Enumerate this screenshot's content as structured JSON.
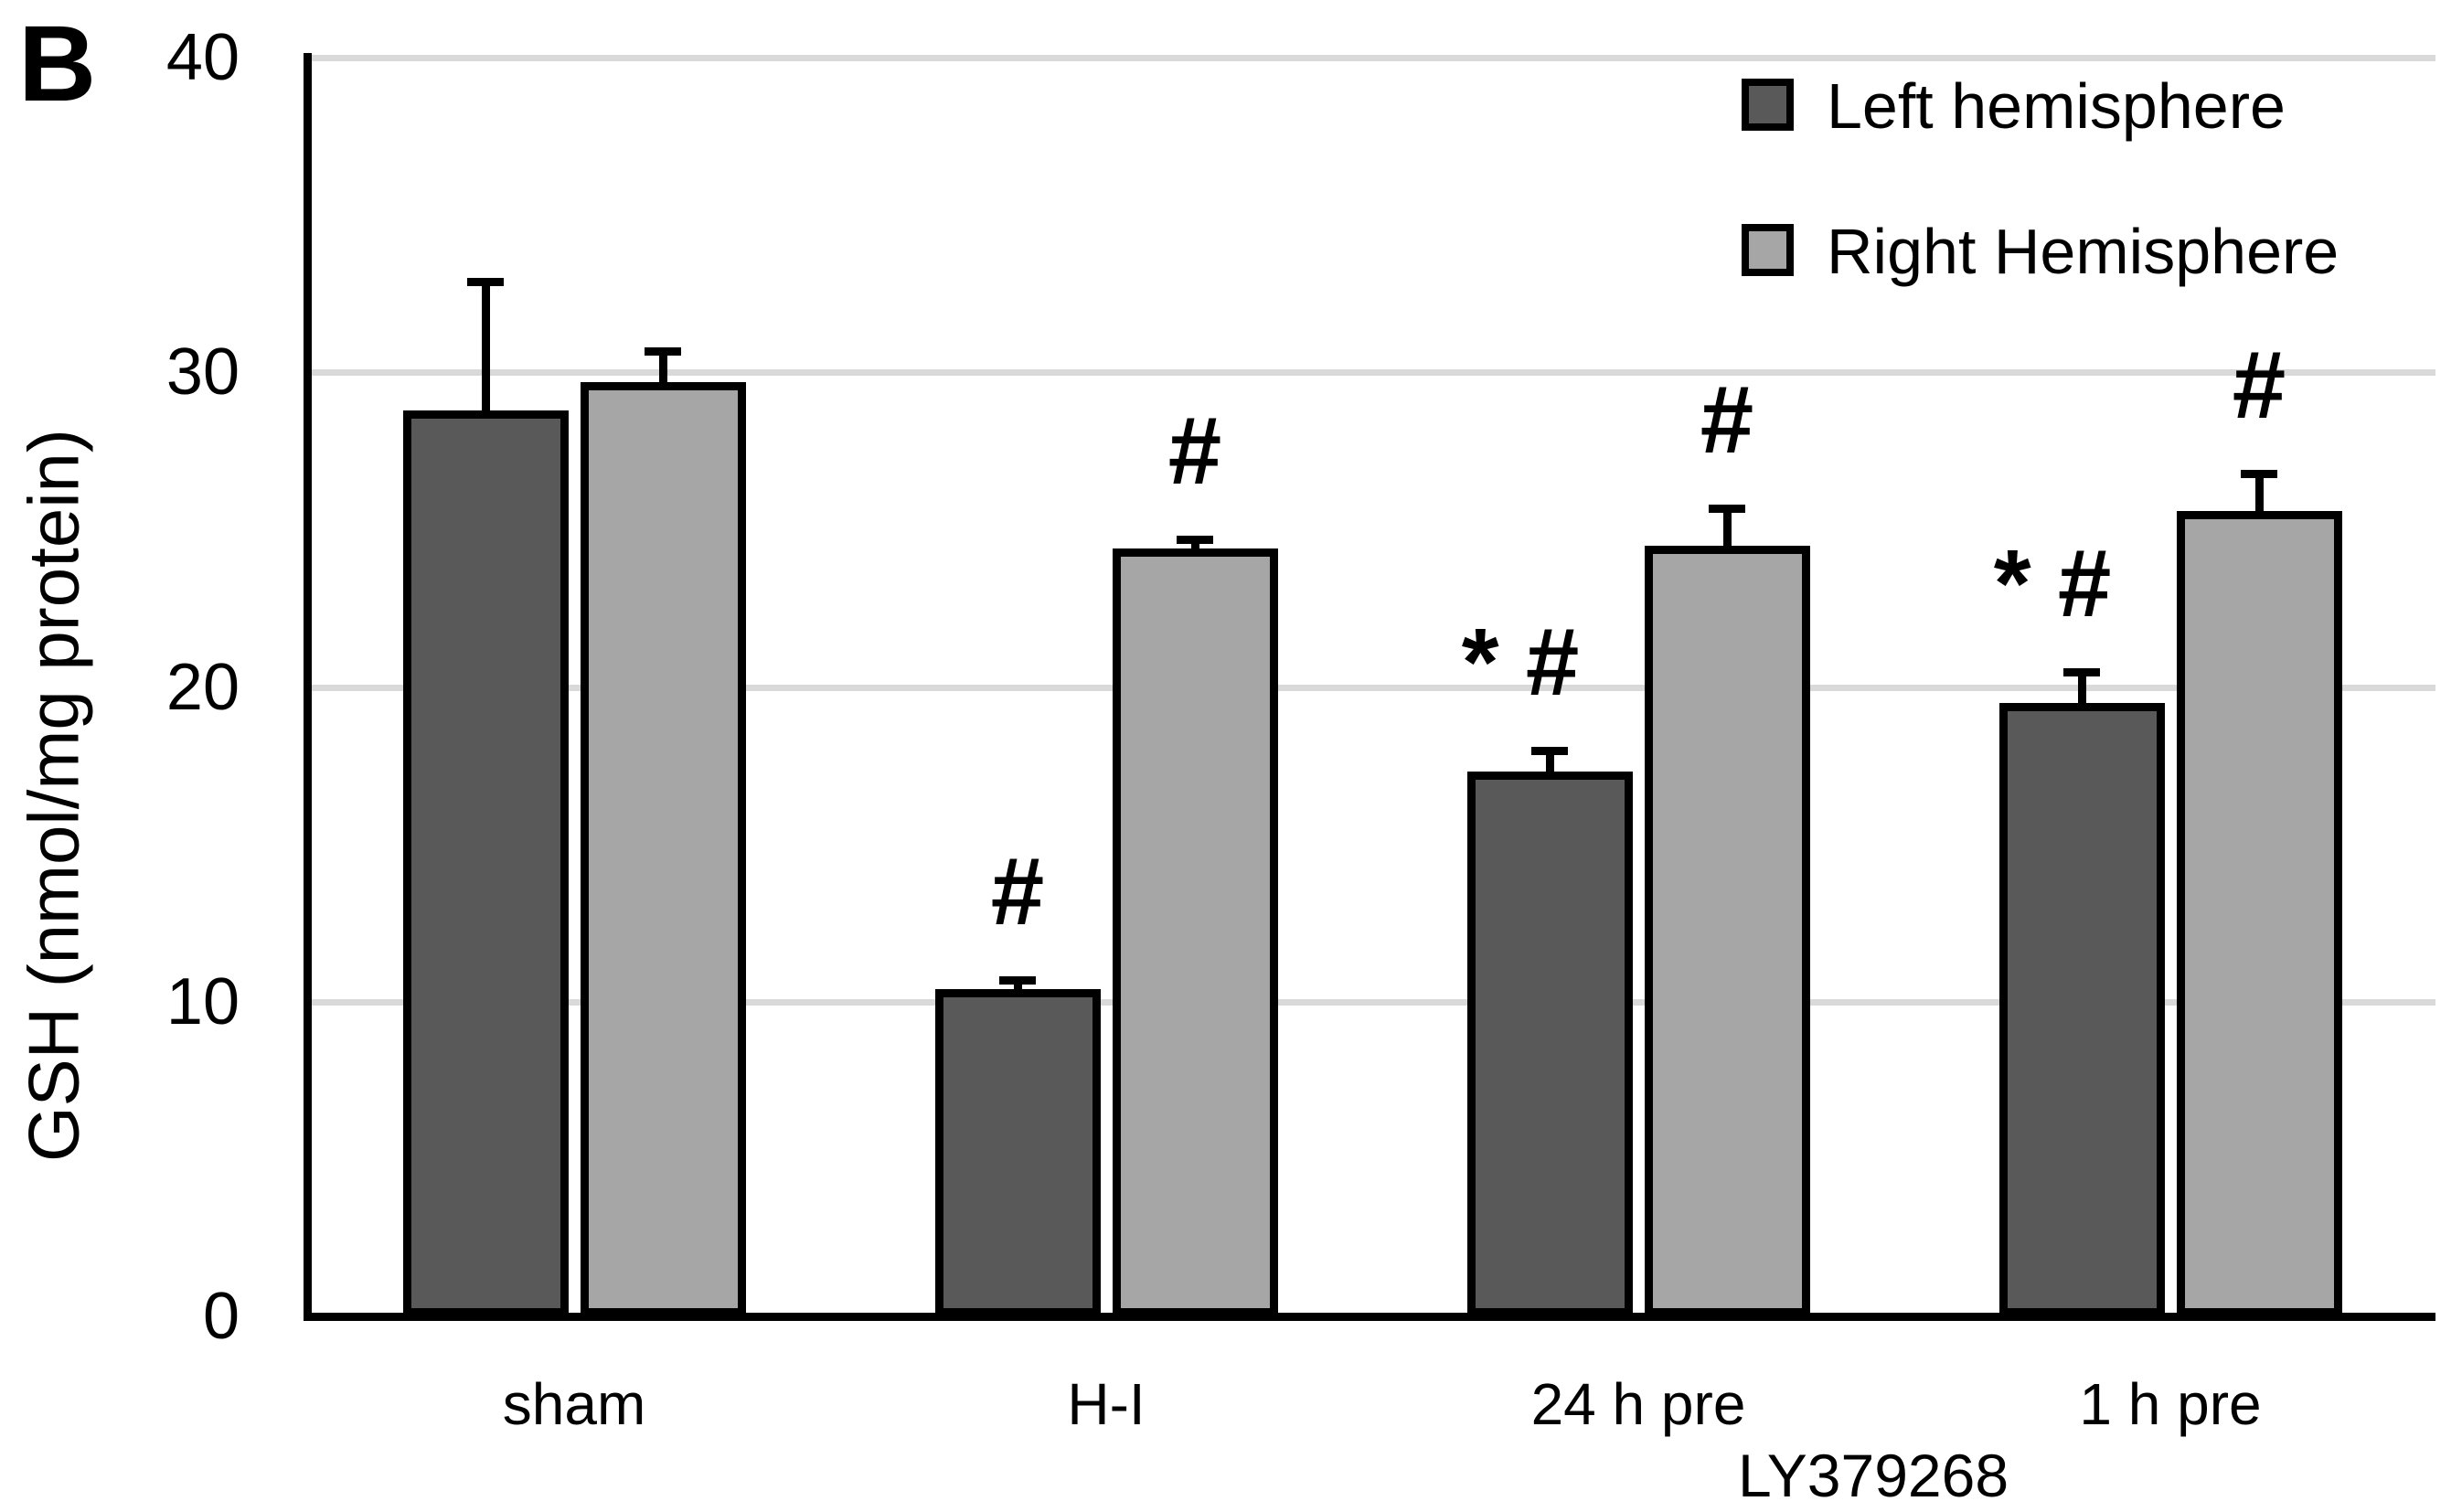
{
  "panel_label": "B",
  "y_axis": {
    "title": "GSH (nmol/mg protein)",
    "ticks": [
      0,
      10,
      20,
      30,
      40
    ]
  },
  "x_axis": {
    "sub_label": "LY379268"
  },
  "legend": {
    "items": [
      {
        "label": "Left hemisphere",
        "color": "#595959"
      },
      {
        "label": "Right Hemisphere",
        "color": "#a6a6a6"
      }
    ]
  },
  "colors": {
    "left_series": "#595959",
    "right_series": "#a6a6a6",
    "gridline": "#d9d9d9",
    "axis": "#000000",
    "background": "#ffffff"
  },
  "chart_data": {
    "type": "bar",
    "categories": [
      "sham",
      "H-I",
      "24 h pre",
      "1 h pre"
    ],
    "series": [
      {
        "name": "Left hemisphere",
        "color": "#595959",
        "values": [
          28.8,
          10.4,
          17.3,
          19.5
        ],
        "errors_plus": [
          4.2,
          0.4,
          0.8,
          1.1
        ],
        "annotations": [
          "",
          "#",
          "* #",
          "* #"
        ]
      },
      {
        "name": "Right Hemisphere",
        "color": "#a6a6a6",
        "values": [
          29.7,
          24.4,
          24.5,
          25.6
        ],
        "errors_plus": [
          1.1,
          0.4,
          1.3,
          1.3
        ],
        "annotations": [
          "",
          "#",
          "#",
          "#"
        ]
      }
    ],
    "title": "",
    "xlabel": "",
    "ylabel": "GSH (nmol/mg protein)",
    "ylim": [
      0,
      40
    ],
    "yticks": [
      0,
      10,
      20,
      30,
      40
    ],
    "grid": true,
    "legend_position": "top-right",
    "x_group_note": {
      "label": "LY379268",
      "applies_to": [
        "24 h pre",
        "1 h pre"
      ]
    }
  }
}
